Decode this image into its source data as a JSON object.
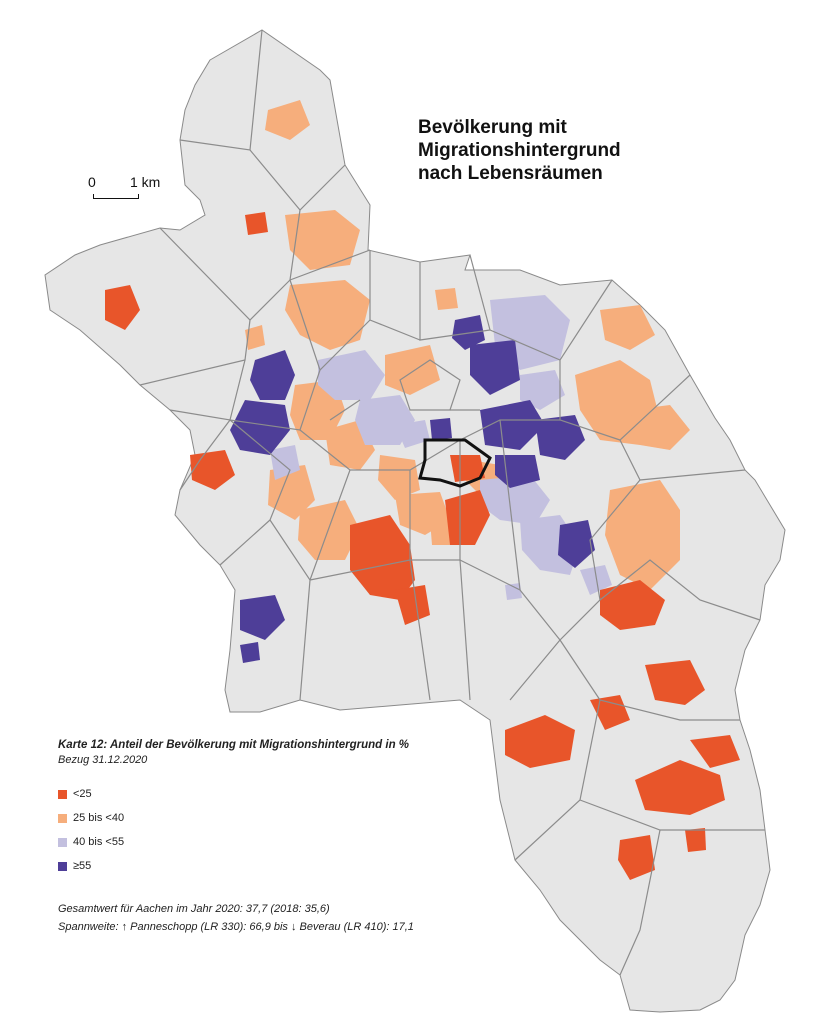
{
  "title": {
    "line1": "Bevölkerung mit",
    "line2": "Migrationshintergrund",
    "line3": "nach Lebensräumen"
  },
  "scale": {
    "start": "0",
    "end": "1 km"
  },
  "legend": {
    "caption": "Karte 12: Anteil der Bevölkerung mit Migrationshintergrund in %",
    "reference": "Bezug 31.12.2020",
    "classes": [
      {
        "label": "<25",
        "color": "#e8552a"
      },
      {
        "label": "25 bis <40",
        "color": "#f6ae7c"
      },
      {
        "label": "40 bis <55",
        "color": "#c3c0df"
      },
      {
        "label": "≥55",
        "color": "#4e3e98"
      }
    ]
  },
  "footer": {
    "total": "Gesamtwert für Aachen im Jahr 2020: 37,7 (2018: 35,6)",
    "range": "Spannweite: ↑ Panneschopp (LR 330): 66,9 bis ↓ Beverau (LR 410): 17,1"
  },
  "colors": {
    "base": "#e6e6e6",
    "border": "#8c8c8c",
    "highlight": "#111111"
  }
}
